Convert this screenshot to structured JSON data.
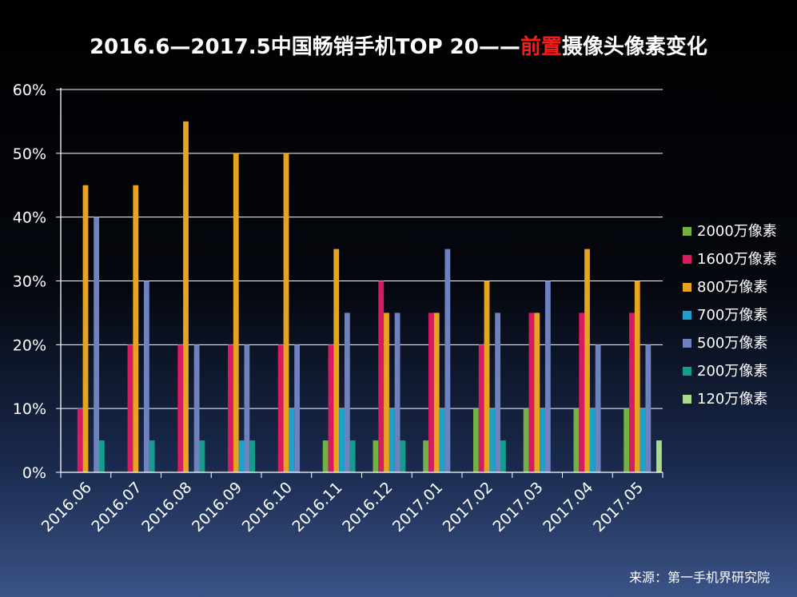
{
  "title": {
    "part1": "2016.6—2017.5中国畅销手机TOP 20——",
    "highlight": "前置",
    "part2": "摄像头像素变化",
    "highlight_color": "#ff1a1a"
  },
  "source": "来源：第一手机界研究院",
  "chart_data": {
    "type": "bar",
    "categories": [
      "2016.06",
      "2016.07",
      "2016.08",
      "2016.09",
      "2016.10",
      "2016.11",
      "2016.12",
      "2017.01",
      "2017.02",
      "2017.03",
      "2017.04",
      "2017.05"
    ],
    "series": [
      {
        "name": "2000万像素",
        "color": "#72b142",
        "values": [
          0,
          0,
          0,
          0,
          0,
          5,
          5,
          5,
          10,
          10,
          10,
          10
        ]
      },
      {
        "name": "1600万像素",
        "color": "#d81b60",
        "values": [
          10,
          20,
          20,
          20,
          20,
          20,
          30,
          25,
          20,
          25,
          25,
          25
        ]
      },
      {
        "name": "800万像素",
        "color": "#e8a31f",
        "values": [
          45,
          45,
          55,
          50,
          50,
          35,
          25,
          25,
          30,
          25,
          35,
          30
        ]
      },
      {
        "name": "700万像素",
        "color": "#1aa2c9",
        "values": [
          0,
          0,
          0,
          5,
          10,
          10,
          10,
          10,
          10,
          10,
          10,
          10
        ]
      },
      {
        "name": "500万像素",
        "color": "#6e82c0",
        "values": [
          40,
          30,
          20,
          20,
          20,
          25,
          25,
          35,
          25,
          30,
          20,
          20
        ]
      },
      {
        "name": "200万像素",
        "color": "#179b8c",
        "values": [
          5,
          5,
          5,
          5,
          0,
          5,
          5,
          0,
          5,
          0,
          0,
          0
        ]
      },
      {
        "name": "120万像素",
        "color": "#a9dc8a",
        "values": [
          0,
          0,
          0,
          0,
          0,
          0,
          0,
          0,
          0,
          0,
          0,
          5
        ]
      }
    ],
    "y_ticks": [
      "0%",
      "10%",
      "20%",
      "30%",
      "40%",
      "50%",
      "60%"
    ],
    "ylim": [
      0,
      60
    ],
    "grid": true,
    "legend_position": "right"
  }
}
